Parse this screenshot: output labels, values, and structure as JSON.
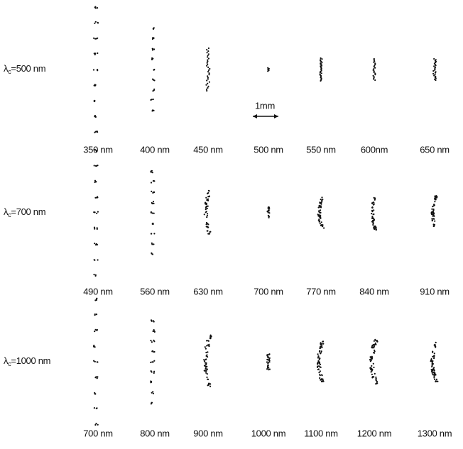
{
  "figure": {
    "rows": [
      {
        "label": {
          "symbol": "λ",
          "subscript": "c",
          "value": "=500 nm"
        },
        "wavelengths": [
          "350 nm",
          "400 nm",
          "450 nm",
          "500 nm",
          "550 nm",
          "600nm",
          "650 nm"
        ]
      },
      {
        "label": {
          "symbol": "λ",
          "subscript": "c",
          "value": "=700 nm"
        },
        "wavelengths": [
          "490 nm",
          "560 nm",
          "630 nm",
          "700 nm",
          "770 nm",
          "840 nm",
          "910 nm"
        ]
      },
      {
        "label": {
          "symbol": "λ",
          "subscript": "c",
          "value": "=1000 nm"
        },
        "wavelengths": [
          "700 nm",
          "800 nm",
          "900 nm",
          "1000 nm",
          "1100 nm",
          "1200 nm",
          "1300 nm"
        ]
      }
    ],
    "scale_bar": "1mm"
  }
}
